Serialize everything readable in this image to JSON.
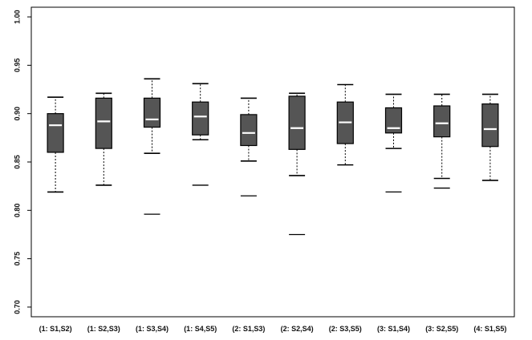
{
  "chart_data": {
    "type": "boxplot",
    "title": "",
    "xlabel": "",
    "ylabel": "",
    "ylim": [
      0.69,
      1.01
    ],
    "y_ticks": [
      "0.70",
      "0.75",
      "0.80",
      "0.85",
      "0.90",
      "0.95",
      "1.00"
    ],
    "y_tick_values": [
      0.7,
      0.75,
      0.8,
      0.85,
      0.9,
      0.95,
      1.0
    ],
    "grid": false,
    "colors": {
      "box_fill": "#555555",
      "median": "#ffffff",
      "stroke": "#000000"
    },
    "categories": [
      "(1: S1,S2)",
      "(1: S2,S3)",
      "(1: S3,S4)",
      "(1: S4,S5)",
      "(2: S1,S3)",
      "(2: S2,S4)",
      "(2: S3,S5)",
      "(3: S1,S4)",
      "(3: S2,S5)",
      "(4: S1,S5)"
    ],
    "boxes": [
      {
        "whisker_low": 0.819,
        "q1": 0.86,
        "median": 0.888,
        "q3": 0.9,
        "whisker_high": 0.917,
        "outliers": []
      },
      {
        "whisker_low": 0.826,
        "q1": 0.864,
        "median": 0.892,
        "q3": 0.916,
        "whisker_high": 0.921,
        "outliers": []
      },
      {
        "whisker_low": 0.859,
        "q1": 0.886,
        "median": 0.894,
        "q3": 0.916,
        "whisker_high": 0.936,
        "outliers": [
          0.796
        ]
      },
      {
        "whisker_low": 0.873,
        "q1": 0.878,
        "median": 0.897,
        "q3": 0.912,
        "whisker_high": 0.931,
        "outliers": [
          0.826
        ]
      },
      {
        "whisker_low": 0.851,
        "q1": 0.867,
        "median": 0.88,
        "q3": 0.899,
        "whisker_high": 0.916,
        "outliers": [
          0.815
        ]
      },
      {
        "whisker_low": 0.836,
        "q1": 0.863,
        "median": 0.885,
        "q3": 0.918,
        "whisker_high": 0.921,
        "outliers": [
          0.775
        ]
      },
      {
        "whisker_low": 0.847,
        "q1": 0.869,
        "median": 0.891,
        "q3": 0.912,
        "whisker_high": 0.93,
        "outliers": []
      },
      {
        "whisker_low": 0.864,
        "q1": 0.88,
        "median": 0.885,
        "q3": 0.906,
        "whisker_high": 0.92,
        "outliers": [
          0.819
        ]
      },
      {
        "whisker_low": 0.833,
        "q1": 0.876,
        "median": 0.89,
        "q3": 0.908,
        "whisker_high": 0.92,
        "outliers": [
          0.823
        ]
      },
      {
        "whisker_low": 0.831,
        "q1": 0.866,
        "median": 0.884,
        "q3": 0.91,
        "whisker_high": 0.92,
        "outliers": []
      }
    ]
  }
}
